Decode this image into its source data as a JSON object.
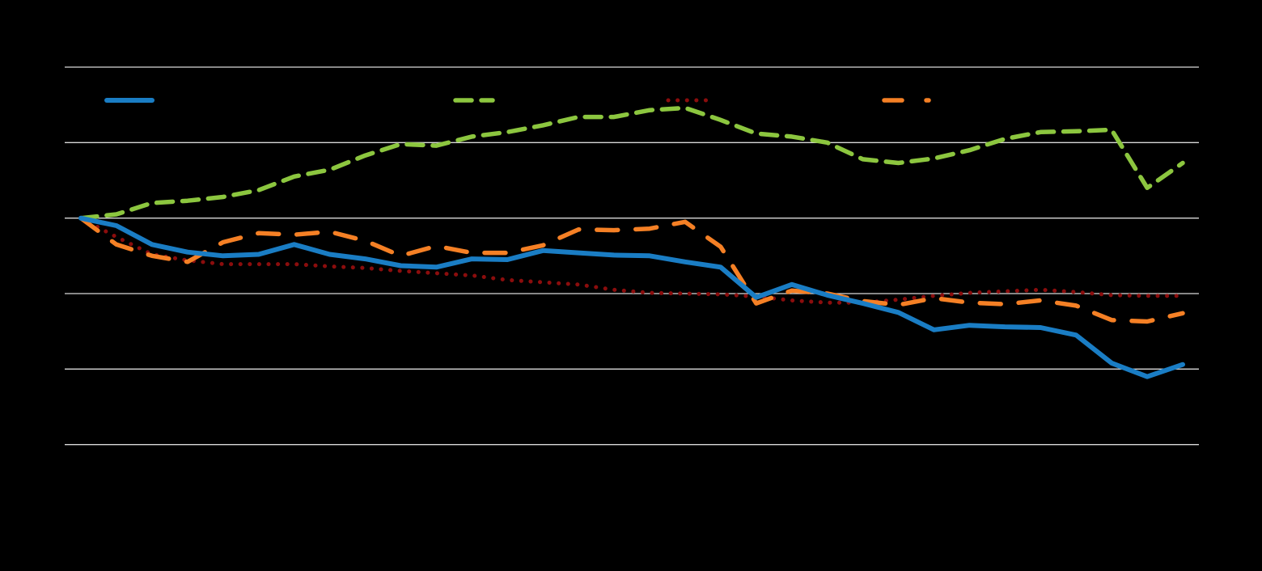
{
  "chart_data": {
    "type": "line",
    "title": "",
    "xlabel": "",
    "ylabel": "",
    "grid": true,
    "legend_position": "top",
    "x": [
      0,
      1,
      2,
      3,
      4,
      5,
      6,
      7,
      8,
      9,
      10,
      11,
      12,
      13,
      14,
      15,
      16,
      17,
      18,
      19,
      20,
      21,
      22,
      23,
      24,
      25,
      26,
      27,
      28,
      29,
      30,
      31
    ],
    "ylim": [
      60,
      120
    ],
    "ygrid": [
      70,
      80,
      90,
      100,
      110,
      120
    ],
    "series": [
      {
        "name": "",
        "style": "solid",
        "color": "#1a7dc4",
        "values": [
          100,
          99,
          96.5,
          95.5,
          95,
          95.2,
          96.5,
          95.2,
          94.6,
          93.7,
          93.5,
          94.6,
          94.5,
          95.7,
          95.4,
          95.1,
          95,
          94.2,
          93.5,
          89.5,
          91.2,
          89.8,
          88.7,
          87.5,
          85.2,
          85.8,
          85.6,
          85.5,
          84.5,
          80.8,
          79,
          80.6
        ]
      },
      {
        "name": "",
        "style": "dashed",
        "color": "#8cc63f",
        "values": [
          100,
          100.5,
          102,
          102.3,
          102.8,
          103.7,
          105.5,
          106.4,
          108.3,
          109.8,
          109.6,
          110.8,
          111.4,
          112.3,
          113.4,
          113.4,
          114.3,
          114.6,
          113,
          111.2,
          110.8,
          110,
          107.8,
          107.3,
          107.9,
          109,
          110.5,
          111.4,
          111.5,
          111.7,
          104,
          107.3
        ]
      },
      {
        "name": "",
        "style": "dotted",
        "color": "#8b0d0d",
        "values": [
          100,
          97.5,
          95.2,
          94.4,
          93.9,
          93.9,
          93.9,
          93.6,
          93.4,
          93,
          92.7,
          92.4,
          91.8,
          91.5,
          91.2,
          90.5,
          90.1,
          90,
          89.9,
          89.6,
          89.1,
          88.8,
          88.8,
          89.2,
          89.7,
          90.1,
          90.3,
          90.5,
          90.2,
          89.8,
          89.7,
          89.7
        ]
      },
      {
        "name": "",
        "style": "dash-dot",
        "color": "#f58025",
        "values": [
          100,
          96.5,
          95,
          94.2,
          96.8,
          98,
          97.8,
          98.2,
          97,
          95,
          96.3,
          95.4,
          95.4,
          96.4,
          98.5,
          98.4,
          98.6,
          99.5,
          96.2,
          88.7,
          90.4,
          90,
          89,
          88.5,
          89.4,
          88.8,
          88.6,
          89.1,
          88.4,
          86.5,
          86.3,
          87.4
        ]
      }
    ]
  }
}
